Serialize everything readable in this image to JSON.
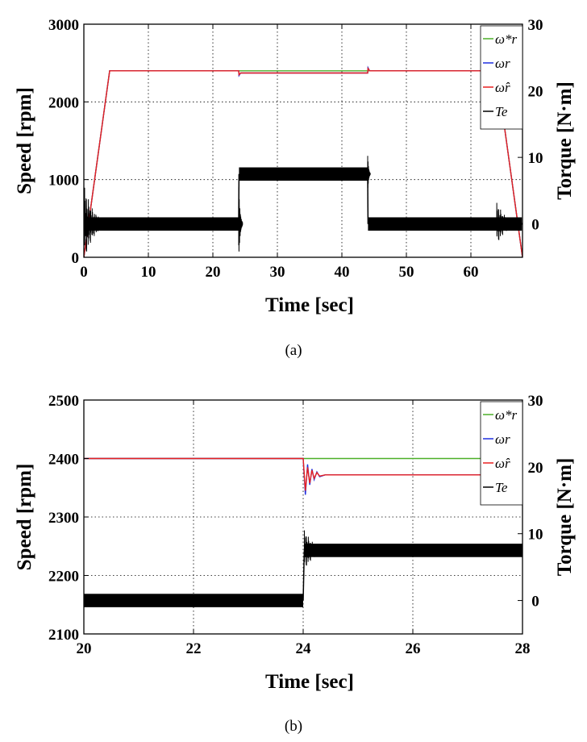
{
  "chart_data": [
    {
      "id": "a",
      "type": "line",
      "caption": "(a)",
      "xlabel": "Time [sec]",
      "ylabel": "Speed [rpm]",
      "y2label": "Torque [N·m]",
      "xlim": [
        0,
        68
      ],
      "ylim": [
        0,
        3000
      ],
      "y2lim": [
        -5,
        30
      ],
      "xticks": [
        0,
        10,
        20,
        30,
        40,
        50,
        60
      ],
      "yticks": [
        0,
        1000,
        2000,
        3000
      ],
      "y2ticks": [
        0,
        10,
        20,
        30
      ],
      "grid": true,
      "legend_position": "top-right",
      "legend": [
        {
          "series": "wr_ref",
          "label": "ω*r"
        },
        {
          "series": "wr",
          "label": "ωr"
        },
        {
          "series": "wr_hat",
          "label": "ω̂r"
        },
        {
          "series": "Te",
          "label": "Te"
        }
      ],
      "series": [
        {
          "id": "wr_ref",
          "color": "#4caf28",
          "axis": "left",
          "x": [
            0,
            4,
            24,
            44,
            64,
            68
          ],
          "y": [
            0,
            2400,
            2400,
            2400,
            2400,
            0
          ]
        },
        {
          "id": "wr",
          "color": "#1f2fe0",
          "axis": "left",
          "x": [
            0,
            4,
            24,
            24.05,
            24.3,
            44,
            44.05,
            44.3,
            64,
            68
          ],
          "y": [
            0,
            2400,
            2400,
            2340,
            2372,
            2372,
            2440,
            2400,
            2400,
            0
          ]
        },
        {
          "id": "wr_hat",
          "color": "#e82020",
          "axis": "left",
          "x": [
            0,
            4,
            24,
            24.05,
            24.3,
            44,
            44.05,
            44.3,
            64,
            68
          ],
          "y": [
            0,
            2400,
            2400,
            2350,
            2372,
            2372,
            2430,
            2400,
            2400,
            0
          ]
        },
        {
          "id": "Te",
          "color": "#000000",
          "axis": "right",
          "band": 1.0,
          "x": [
            0.1,
            4,
            24,
            24.05,
            44,
            44.05,
            64,
            67.9
          ],
          "y": [
            0,
            0,
            0,
            7.5,
            7.5,
            0,
            0,
            0
          ],
          "ripples": [
            {
              "x0": 0.1,
              "x1": 4,
              "amp": 6
            },
            {
              "x0": 24,
              "x1": 24.6,
              "amp": 6
            },
            {
              "x0": 44,
              "x1": 44.4,
              "amp": 3
            },
            {
              "x0": 64,
              "x1": 67.9,
              "amp": 3.5
            }
          ]
        }
      ]
    },
    {
      "id": "b",
      "type": "line",
      "caption": "(b)",
      "xlabel": "Time [sec]",
      "ylabel": "Speed [rpm]",
      "y2label": "Torque [N·m]",
      "xlim": [
        20,
        28
      ],
      "ylim": [
        2100,
        2500
      ],
      "y2lim": [
        -5,
        30
      ],
      "xticks": [
        20,
        22,
        24,
        26,
        28
      ],
      "yticks": [
        2100,
        2200,
        2300,
        2400,
        2500
      ],
      "y2ticks": [
        0,
        10,
        20,
        30
      ],
      "grid": true,
      "legend_position": "top-right",
      "legend": [
        {
          "series": "wr_ref",
          "label": "ω*r"
        },
        {
          "series": "wr",
          "label": "ωr"
        },
        {
          "series": "wr_hat",
          "label": "ω̂r"
        },
        {
          "series": "Te",
          "label": "Te"
        }
      ],
      "series": [
        {
          "id": "wr_ref",
          "color": "#4caf28",
          "axis": "left",
          "x": [
            20,
            28
          ],
          "y": [
            2400,
            2400
          ]
        },
        {
          "id": "wr",
          "color": "#1f2fe0",
          "axis": "left",
          "x": [
            20,
            24,
            24.04,
            24.08,
            24.12,
            24.16,
            24.2,
            24.25,
            24.3,
            24.4,
            28
          ],
          "y": [
            2400,
            2400,
            2338,
            2390,
            2355,
            2382,
            2364,
            2377,
            2369,
            2372,
            2372
          ]
        },
        {
          "id": "wr_hat",
          "color": "#e82020",
          "axis": "left",
          "x": [
            20,
            24,
            24.04,
            24.08,
            24.12,
            24.16,
            24.2,
            24.25,
            24.3,
            24.4,
            28
          ],
          "y": [
            2400,
            2400,
            2345,
            2385,
            2358,
            2380,
            2366,
            2376,
            2370,
            2372,
            2372
          ]
        },
        {
          "id": "Te",
          "color": "#000000",
          "axis": "right",
          "band": 1.0,
          "x": [
            20,
            24,
            24.02,
            28
          ],
          "y": [
            0,
            0,
            7.5,
            7.5
          ],
          "ripples": [
            {
              "x0": 24.02,
              "x1": 24.5,
              "amp": 3.3
            }
          ]
        }
      ]
    }
  ]
}
